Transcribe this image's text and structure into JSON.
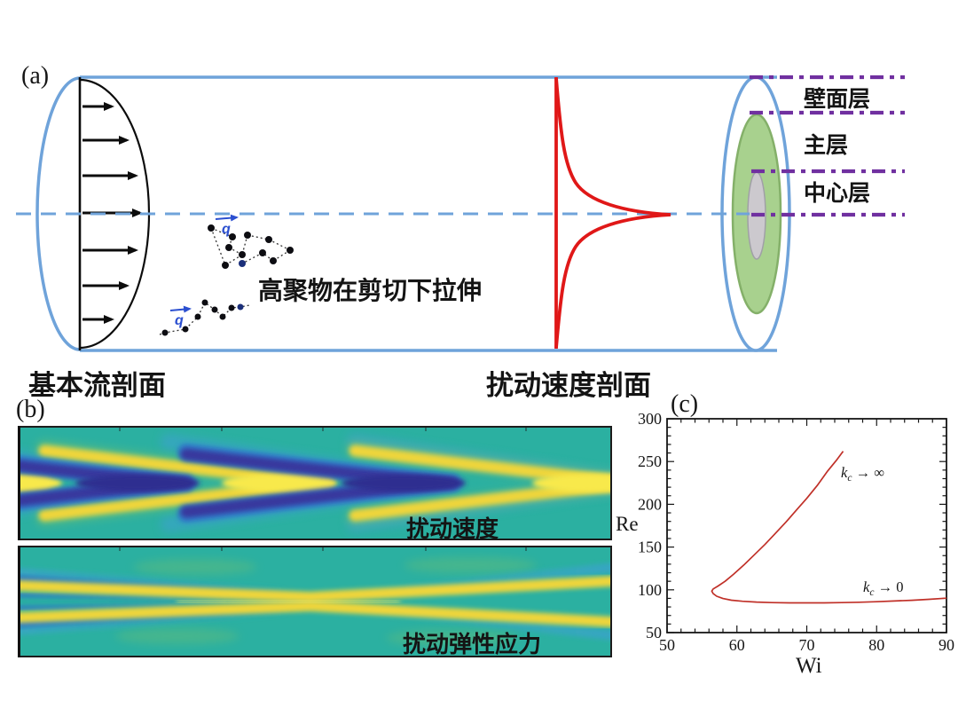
{
  "panel_a": {
    "label": "(a)",
    "base_flow_label": "基本流剖面",
    "perturb_profile_label": "扰动速度剖面",
    "polymer_label": "高聚物在剪切下拉伸",
    "q_label": "q",
    "layers": [
      "壁面层",
      "主层",
      "中心层"
    ]
  },
  "panel_b": {
    "label": "(b)",
    "map1_title": "扰动速度",
    "map2_title": "扰动弹性应力"
  },
  "panel_c": {
    "label": "(c)",
    "xlabel": "Wi",
    "ylabel": "Re",
    "ann_inf": {
      "k": "k",
      "sub": "c",
      "rest": " → ∞"
    },
    "ann_zero": {
      "k": "k",
      "sub": "c",
      "rest": " → 0"
    }
  },
  "colors": {
    "pipe_blue": "#6fa3da",
    "profile_red": "#e01818",
    "layer_purple": "#7030a0",
    "green_fill": "#a8d18e",
    "gray_fill": "#ccc9ce",
    "heat_teal": "#2bb0a1",
    "heat_yellow": "#efd53a",
    "heat_dark_blue": "#37379e",
    "heat_mid_blue": "#2d66d0",
    "heat_light_blue": "#3f9fd8",
    "curve_red": "#c03028"
  },
  "chart_data": [
    {
      "panel": "b",
      "type": "heatmap",
      "plots": [
        {
          "title": "扰动速度",
          "pattern": "alternating bright-yellow and dark-blue chevrons pointing downstream along the pipe centerline",
          "chevron_apex_fraction_yellow": [
            0.05,
            0.52,
            1.0
          ],
          "chevron_apex_fraction_blue": [
            0.28,
            0.72
          ]
        },
        {
          "title": "扰动弹性应力",
          "pattern": "thin yellow and dark-blue stripes hugging the centerline, crossing/pinching at mid-length with color swap"
        }
      ],
      "colormap": [
        "#2e2e90",
        "#37379e",
        "#2d66d0",
        "#3f9fd8",
        "#2bb0a1",
        "#7cc268",
        "#efd53a",
        "#f8e94c"
      ]
    },
    {
      "panel": "c",
      "type": "line",
      "xlabel": "Wi",
      "ylabel": "Re",
      "xlim": [
        50,
        90
      ],
      "ylim": [
        50,
        300
      ],
      "xticks": [
        50,
        60,
        70,
        80,
        90
      ],
      "yticks": [
        50,
        100,
        150,
        200,
        250,
        300
      ],
      "x_minor_step": 2,
      "y_minor_step": 10,
      "legend": "none",
      "grid": false,
      "series": [
        {
          "name": "neutral-stability-curve",
          "color": "#c03028",
          "points": [
            [
              75.2,
              262
            ],
            [
              74.2,
              251
            ],
            [
              73,
              239
            ],
            [
              71.5,
              222
            ],
            [
              70,
              207
            ],
            [
              68.5,
              193
            ],
            [
              67,
              179
            ],
            [
              65.5,
              166
            ],
            [
              64,
              153
            ],
            [
              62.5,
              141
            ],
            [
              61,
              129
            ],
            [
              59.5,
              118
            ],
            [
              58.3,
              110
            ],
            [
              57.3,
              104.5
            ],
            [
              56.6,
              101
            ],
            [
              56.4,
              98.5
            ],
            [
              56.6,
              95.5
            ],
            [
              57.1,
              92.5
            ],
            [
              58,
              89.8
            ],
            [
              59.2,
              87.9
            ],
            [
              60.8,
              86.6
            ],
            [
              62.8,
              85.7
            ],
            [
              65,
              85.1
            ],
            [
              67.5,
              84.8
            ],
            [
              70,
              84.7
            ],
            [
              72.5,
              84.8
            ],
            [
              75,
              85.1
            ],
            [
              77.5,
              85.5
            ],
            [
              80,
              86.1
            ],
            [
              82.5,
              86.9
            ],
            [
              85,
              87.8
            ],
            [
              87.5,
              88.9
            ],
            [
              90,
              90.2
            ]
          ]
        }
      ],
      "annotations": [
        {
          "text": "k_c → ∞",
          "wi": 74.9,
          "re": 233
        },
        {
          "text": "k_c → 0",
          "wi": 78.3,
          "re": 100
        }
      ]
    }
  ]
}
